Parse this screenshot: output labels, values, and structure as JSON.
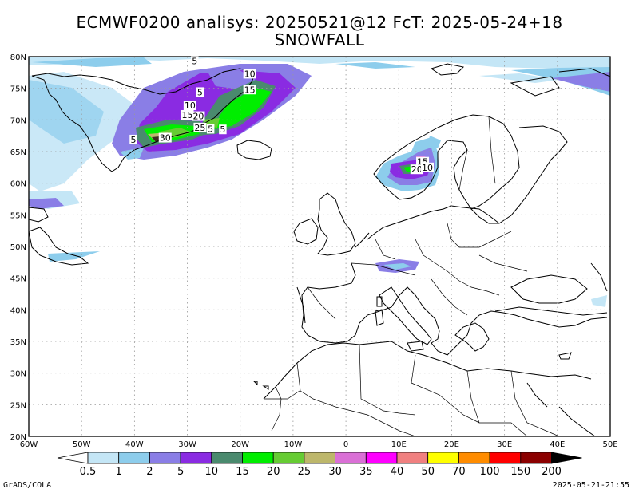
{
  "title": "ECMWF0200 analisys: 20250521@12 FcT: 2025-05-24+18",
  "subtitle": "SNOWFALL",
  "footer_left": "GrADS/COLA",
  "footer_right": "2025-05-21-21:55",
  "map": {
    "lon_range": [
      -60,
      50
    ],
    "lat_range": [
      20,
      80
    ],
    "lon_labels": [
      "60W",
      "50W",
      "40W",
      "30W",
      "20W",
      "10W",
      "0",
      "10E",
      "20E",
      "30E",
      "40E",
      "50E"
    ],
    "lat_labels": [
      "20N",
      "25N",
      "30N",
      "35N",
      "40N",
      "45N",
      "50N",
      "55N",
      "60N",
      "65N",
      "70N",
      "75N",
      "80N"
    ],
    "grid": true,
    "contour_labels": [
      {
        "text": "5",
        "lon": -28.6,
        "lat": 79.3
      },
      {
        "text": "10",
        "lon": -18.2,
        "lat": 77.3
      },
      {
        "text": "15",
        "lon": -18.2,
        "lat": 74.8
      },
      {
        "text": "5",
        "lon": -27.6,
        "lat": 74.4
      },
      {
        "text": "10",
        "lon": -29.5,
        "lat": 72.3
      },
      {
        "text": "15",
        "lon": -30.0,
        "lat": 70.8
      },
      {
        "text": "20",
        "lon": -27.9,
        "lat": 70.6
      },
      {
        "text": "25",
        "lon": -27.6,
        "lat": 68.8
      },
      {
        "text": "5",
        "lon": -25.6,
        "lat": 68.6
      },
      {
        "text": "5",
        "lon": -23.3,
        "lat": 68.5
      },
      {
        "text": "30",
        "lon": -34.2,
        "lat": 67.2
      },
      {
        "text": "5",
        "lon": -40.2,
        "lat": 66.9
      },
      {
        "text": "15",
        "lon": 14.5,
        "lat": 63.4
      },
      {
        "text": "20",
        "lon": 13.4,
        "lat": 62.2
      },
      {
        "text": "10",
        "lon": 15.4,
        "lat": 62.5
      }
    ]
  },
  "colorbar": {
    "labels": [
      "0.5",
      "1",
      "2",
      "5",
      "10",
      "15",
      "20",
      "25",
      "30",
      "35",
      "40",
      "50",
      "70",
      "100",
      "150",
      "200"
    ],
    "colors": [
      "#c4e6f6",
      "#8dcdec",
      "#8a7ee6",
      "#8a2be2",
      "#4a8a6e",
      "#00ee00",
      "#66cc33",
      "#bdb76b",
      "#da70d6",
      "#ff00ff",
      "#f08080",
      "#ffff00",
      "#ff8c00",
      "#ff0000",
      "#8b0000"
    ]
  }
}
